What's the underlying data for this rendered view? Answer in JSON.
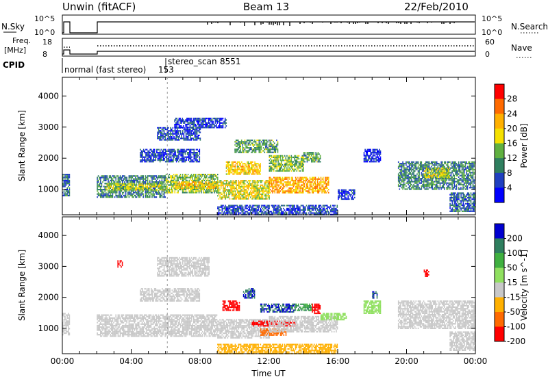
{
  "header": {
    "site": "Unwin (fitACF)",
    "beam": "Beam 13",
    "date": "22/Feb/2010"
  },
  "noise_panel": {
    "left_label": "N.Sky",
    "right_label": "N.Search",
    "left_ticks": [
      "10^5",
      "10^0"
    ],
    "right_ticks": [
      "10^5",
      "10^0"
    ]
  },
  "freq_panel": {
    "left_label_1": "Freq.",
    "left_label_2": "[MHz]",
    "right_label": "Nave",
    "left_ticks": [
      "18",
      "8"
    ],
    "right_ticks": [
      "60",
      "0"
    ]
  },
  "cpid": {
    "label": "CPID",
    "segments": [
      {
        "name": "normal (fast stereo)",
        "id": "153",
        "start_hour": 0.2
      },
      {
        "name": "stereo_scan",
        "id": "8551",
        "start_hour": 6.1
      }
    ]
  },
  "chart_data": [
    {
      "type": "heatmap",
      "parameter": "Power",
      "colorbar_label": "Power [dB]",
      "colorbar_ticks": [
        28,
        24,
        20,
        16,
        12,
        8,
        4
      ],
      "colorbar_colors": [
        "#ff0000",
        "#ff6a00",
        "#ffb000",
        "#f5e000",
        "#60b040",
        "#2f7f5f",
        "#2040c0",
        "#0000ff"
      ],
      "xlabel": "Time UT",
      "ylabel": "Slant Range [km]",
      "xlim_hours": [
        0,
        24
      ],
      "ylim_km": [
        180,
        4600
      ],
      "x_ticks": [
        "00:00",
        "04:00",
        "08:00",
        "12:00",
        "16:00",
        "20:00",
        "00:00"
      ],
      "y_ticks": [
        1000,
        2000,
        3000,
        4000
      ],
      "patches": [
        {
          "t0": 0.0,
          "t1": 0.4,
          "r0": 800,
          "r1": 1500,
          "v": 8
        },
        {
          "t0": 2.0,
          "t1": 6.0,
          "r0": 750,
          "r1": 1450,
          "v": 10
        },
        {
          "t0": 2.5,
          "t1": 6.0,
          "r0": 1000,
          "r1": 1200,
          "v": 16
        },
        {
          "t0": 6.0,
          "t1": 9.0,
          "r0": 900,
          "r1": 1500,
          "v": 14
        },
        {
          "t0": 6.5,
          "t1": 9.0,
          "r0": 1050,
          "r1": 1250,
          "v": 20
        },
        {
          "t0": 4.5,
          "t1": 8.0,
          "r0": 1900,
          "r1": 2300,
          "v": 6
        },
        {
          "t0": 5.5,
          "t1": 8.0,
          "r0": 2600,
          "r1": 3000,
          "v": 6
        },
        {
          "t0": 6.5,
          "t1": 9.5,
          "r0": 3000,
          "r1": 3300,
          "v": 5
        },
        {
          "t0": 9.0,
          "t1": 12.0,
          "r0": 700,
          "r1": 1300,
          "v": 18
        },
        {
          "t0": 9.5,
          "t1": 11.5,
          "r0": 1500,
          "r1": 1900,
          "v": 20
        },
        {
          "t0": 10.0,
          "t1": 12.5,
          "r0": 2200,
          "r1": 2600,
          "v": 12
        },
        {
          "t0": 12.0,
          "t1": 15.5,
          "r0": 900,
          "r1": 1400,
          "v": 22
        },
        {
          "t0": 12.0,
          "t1": 14.0,
          "r0": 1600,
          "r1": 2100,
          "v": 14
        },
        {
          "t0": 14.0,
          "t1": 15.0,
          "r0": 1900,
          "r1": 2200,
          "v": 12
        },
        {
          "t0": 9.0,
          "t1": 16.0,
          "r0": 200,
          "r1": 500,
          "v": 6
        },
        {
          "t0": 16.0,
          "t1": 17.0,
          "r0": 700,
          "r1": 1000,
          "v": 5
        },
        {
          "t0": 17.5,
          "t1": 18.5,
          "r0": 1900,
          "r1": 2300,
          "v": 4
        },
        {
          "t0": 19.5,
          "t1": 24.0,
          "r0": 1000,
          "r1": 1900,
          "v": 10
        },
        {
          "t0": 21.0,
          "t1": 22.5,
          "r0": 1400,
          "r1": 1700,
          "v": 16
        },
        {
          "t0": 22.5,
          "t1": 24.0,
          "r0": 300,
          "r1": 900,
          "v": 8
        }
      ]
    },
    {
      "type": "heatmap",
      "parameter": "Velocity",
      "colorbar_label": "Velocity [m s^-1]",
      "colorbar_ticks": [
        200,
        100,
        50,
        15,
        -15,
        -50,
        -100,
        -200
      ],
      "colorbar_colors": [
        "#0000d0",
        "#2f7f5f",
        "#40b040",
        "#90e060",
        "#c8c8c8",
        "#ffb000",
        "#ff6a00",
        "#ff0000"
      ],
      "xlabel": "Time UT",
      "ylabel": "Slant Range [km]",
      "xlim_hours": [
        0,
        24
      ],
      "ylim_km": [
        180,
        4600
      ],
      "x_ticks": [
        "00:00",
        "04:00",
        "08:00",
        "12:00",
        "16:00",
        "20:00",
        "00:00"
      ],
      "y_ticks": [
        1000,
        2000,
        3000,
        4000
      ],
      "patches": [
        {
          "t0": 0.0,
          "t1": 0.4,
          "r0": 800,
          "r1": 1500,
          "v": 0
        },
        {
          "t0": 2.0,
          "t1": 9.0,
          "r0": 750,
          "r1": 1450,
          "v": 0
        },
        {
          "t0": 4.5,
          "t1": 8.0,
          "r0": 1900,
          "r1": 2300,
          "v": 0
        },
        {
          "t0": 5.5,
          "t1": 8.5,
          "r0": 2700,
          "r1": 3300,
          "v": 0
        },
        {
          "t0": 3.2,
          "t1": 3.5,
          "r0": 3000,
          "r1": 3200,
          "v": -200
        },
        {
          "t0": 9.0,
          "t1": 12.0,
          "r0": 700,
          "r1": 1300,
          "v": 0
        },
        {
          "t0": 9.3,
          "t1": 10.3,
          "r0": 1600,
          "r1": 1900,
          "v": -150
        },
        {
          "t0": 10.5,
          "t1": 11.2,
          "r0": 2000,
          "r1": 2300,
          "v": 200
        },
        {
          "t0": 11.5,
          "t1": 13.5,
          "r0": 1550,
          "r1": 1800,
          "v": 200
        },
        {
          "t0": 13.5,
          "t1": 14.5,
          "r0": 1600,
          "r1": 1800,
          "v": 100
        },
        {
          "t0": 14.5,
          "t1": 15.0,
          "r0": 1500,
          "r1": 1800,
          "v": -150
        },
        {
          "t0": 11.0,
          "t1": 13.5,
          "r0": 1100,
          "r1": 1250,
          "v": -150
        },
        {
          "t0": 11.5,
          "t1": 13.0,
          "r0": 800,
          "r1": 1000,
          "v": -60
        },
        {
          "t0": 12.0,
          "t1": 16.0,
          "r0": 900,
          "r1": 1400,
          "v": 0
        },
        {
          "t0": 15.0,
          "t1": 16.5,
          "r0": 1300,
          "r1": 1500,
          "v": 30
        },
        {
          "t0": 9.0,
          "t1": 16.0,
          "r0": 200,
          "r1": 500,
          "v": -40
        },
        {
          "t0": 17.5,
          "t1": 18.5,
          "r0": 1500,
          "r1": 1900,
          "v": 30
        },
        {
          "t0": 18.0,
          "t1": 18.3,
          "r0": 2000,
          "r1": 2200,
          "v": 200
        },
        {
          "t0": 19.5,
          "t1": 24.0,
          "r0": 1000,
          "r1": 1900,
          "v": 0
        },
        {
          "t0": 21.0,
          "t1": 21.3,
          "r0": 2700,
          "r1": 2900,
          "v": -200
        },
        {
          "t0": 22.5,
          "t1": 24.0,
          "r0": 300,
          "r1": 900,
          "v": 0
        }
      ]
    }
  ]
}
